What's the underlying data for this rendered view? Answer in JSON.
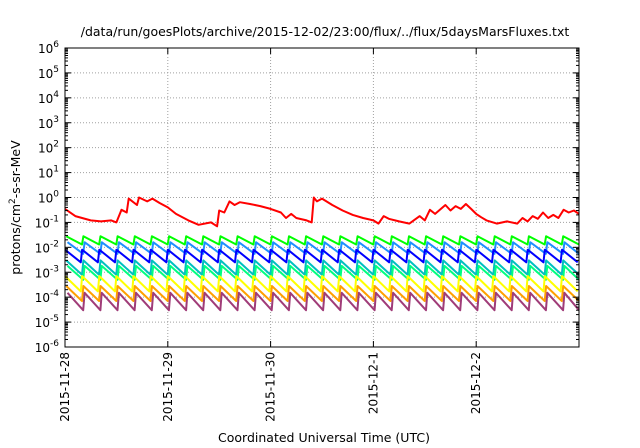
{
  "chart_data": {
    "type": "line",
    "title": "/data/run/goesPlots/archive/2015-12-02/23:00/flux/../flux/5daysMarsFluxes.txt",
    "xlabel": "Coordinated Universal Time (UTC)",
    "ylabel": {
      "prefix": "protons/cm",
      "superscript": "2",
      "suffix": "-s-sr-MeV"
    },
    "yscale": "log",
    "ylim": [
      1e-06,
      1000000.0
    ],
    "y_ticks": [
      {
        "base": "10",
        "exp": "-6"
      },
      {
        "base": "10",
        "exp": "-5"
      },
      {
        "base": "10",
        "exp": "-4"
      },
      {
        "base": "10",
        "exp": "-3"
      },
      {
        "base": "10",
        "exp": "-2"
      },
      {
        "base": "10",
        "exp": "-1"
      },
      {
        "base": "10",
        "exp": "0"
      },
      {
        "base": "10",
        "exp": "1"
      },
      {
        "base": "10",
        "exp": "2"
      },
      {
        "base": "10",
        "exp": "3"
      },
      {
        "base": "10",
        "exp": "4"
      },
      {
        "base": "10",
        "exp": "5"
      },
      {
        "base": "10",
        "exp": "6"
      }
    ],
    "xlim": [
      0,
      5
    ],
    "x_ticks": [
      {
        "value": 0,
        "label": "2015-11-28"
      },
      {
        "value": 1,
        "label": "2015-11-29"
      },
      {
        "value": 2,
        "label": "2015-11-30"
      },
      {
        "value": 3,
        "label": "2015-12-1"
      },
      {
        "value": 4,
        "label": "2015-12-2"
      }
    ],
    "grid": true,
    "series": [
      {
        "color": "#ff0000",
        "pattern": "decay",
        "x": [
          0.0,
          0.1,
          0.25,
          0.35,
          0.45,
          0.5,
          0.55,
          0.6,
          0.62,
          0.7,
          0.72,
          0.8,
          0.85,
          0.92,
          1.0,
          1.08,
          1.2,
          1.3,
          1.42,
          1.48,
          1.5,
          1.55,
          1.6,
          1.65,
          1.7,
          1.8,
          1.9,
          2.0,
          2.1,
          2.15,
          2.2,
          2.25,
          2.35,
          2.4,
          2.42,
          2.45,
          2.5,
          2.6,
          2.7,
          2.8,
          2.9,
          3.0,
          3.05,
          3.1,
          3.15,
          3.25,
          3.35,
          3.45,
          3.5,
          3.55,
          3.6,
          3.7,
          3.75,
          3.8,
          3.85,
          3.9,
          3.95,
          4.0,
          4.05,
          4.1,
          4.2,
          4.3,
          4.4,
          4.45,
          4.5,
          4.55,
          4.6,
          4.65,
          4.7,
          4.75,
          4.8,
          4.85,
          4.9,
          4.95,
          5.0
        ],
        "y": [
          0.35,
          0.18,
          0.12,
          0.11,
          0.12,
          0.1,
          0.32,
          0.25,
          0.9,
          0.5,
          1.0,
          0.7,
          0.9,
          0.6,
          0.4,
          0.22,
          0.12,
          0.08,
          0.1,
          0.07,
          0.3,
          0.25,
          0.7,
          0.5,
          0.65,
          0.55,
          0.45,
          0.35,
          0.25,
          0.15,
          0.22,
          0.15,
          0.12,
          0.1,
          1.0,
          0.7,
          0.9,
          0.5,
          0.3,
          0.2,
          0.15,
          0.12,
          0.09,
          0.18,
          0.14,
          0.11,
          0.09,
          0.18,
          0.12,
          0.32,
          0.22,
          0.5,
          0.3,
          0.45,
          0.35,
          0.55,
          0.35,
          0.22,
          0.16,
          0.12,
          0.09,
          0.11,
          0.09,
          0.15,
          0.11,
          0.18,
          0.14,
          0.25,
          0.15,
          0.2,
          0.15,
          0.32,
          0.25,
          0.3,
          0.22
        ]
      },
      {
        "color": "#00ff00",
        "pattern": "sawtooth",
        "x_start": 0,
        "x_end": 5,
        "period": 0.1667,
        "high": 0.028,
        "low": 0.013
      },
      {
        "color": "#1e90ff",
        "pattern": "sawtooth",
        "x_start": 0,
        "x_end": 5,
        "period": 0.1667,
        "high": 0.016,
        "low": 0.0055
      },
      {
        "color": "#0000ff",
        "pattern": "sawtooth",
        "x_start": 0,
        "x_end": 5,
        "period": 0.1667,
        "high": 0.008,
        "low": 0.0025
      },
      {
        "color": "#00c0c0",
        "pattern": "sawtooth",
        "x_start": 0,
        "x_end": 5,
        "period": 0.1667,
        "high": 0.003,
        "low": 0.0008
      },
      {
        "color": "#00ff80",
        "pattern": "sawtooth",
        "x_start": 0,
        "x_end": 5,
        "period": 0.1667,
        "high": 0.0018,
        "low": 0.0005
      },
      {
        "color": "#ffff00",
        "pattern": "sawtooth",
        "x_start": 0,
        "x_end": 5,
        "period": 0.1667,
        "high": 0.0007,
        "low": 0.00017
      },
      {
        "color": "#ffa000",
        "pattern": "sawtooth",
        "x_start": 0,
        "x_end": 5,
        "period": 0.1667,
        "high": 0.00028,
        "low": 7e-05
      },
      {
        "color": "#a03c78",
        "pattern": "sawtooth",
        "x_start": 0,
        "x_end": 5,
        "period": 0.1667,
        "high": 0.00015,
        "low": 3e-05
      }
    ]
  }
}
